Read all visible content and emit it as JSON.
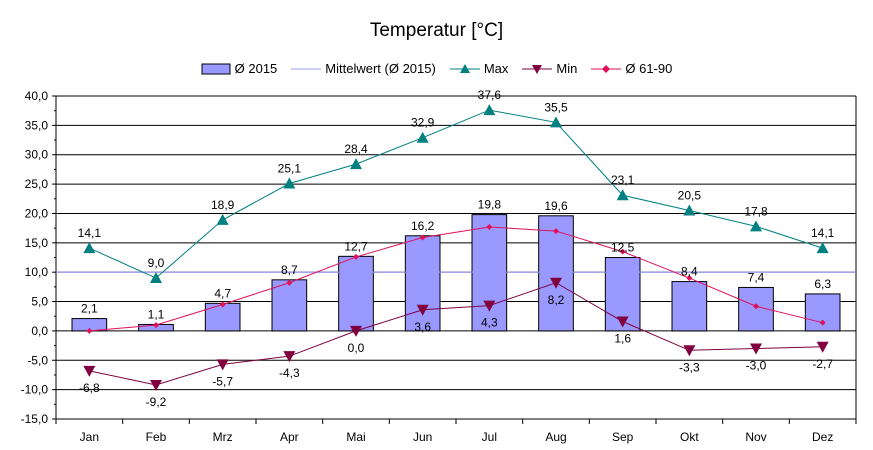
{
  "chart_data": {
    "type": "bar",
    "title": "Temperatur [°C]",
    "categories": [
      "Jan",
      "Feb",
      "Mrz",
      "Apr",
      "Mai",
      "Jun",
      "Jul",
      "Aug",
      "Sep",
      "Okt",
      "Nov",
      "Dez"
    ],
    "ylim": [
      -15,
      40
    ],
    "ytick_step": 5,
    "ytick_labels": [
      "-15,0",
      "-10,0",
      "-5,0",
      "0,0",
      "5,0",
      "10,0",
      "15,0",
      "20,0",
      "25,0",
      "30,0",
      "35,0",
      "40,0"
    ],
    "grid": true,
    "legend_position": "top",
    "series": [
      {
        "name": "Ø 2015",
        "kind": "bar",
        "color": "#9999ff",
        "values": [
          2.1,
          1.1,
          4.7,
          8.7,
          12.7,
          16.2,
          19.8,
          19.6,
          12.5,
          8.4,
          7.4,
          6.3
        ],
        "labels": [
          "2,1",
          "1,1",
          "4,7",
          "8,7",
          "12,7",
          "16,2",
          "19,8",
          "19,6",
          "12,5",
          "8,4",
          "7,4",
          "6,3"
        ]
      },
      {
        "name": "Mittelwert (Ø 2015)",
        "kind": "hline",
        "color": "#9999ff",
        "value": 10.0
      },
      {
        "name": "Max",
        "kind": "line",
        "marker": "triangle-up",
        "color": "#008080",
        "values": [
          14.1,
          9.0,
          18.9,
          25.1,
          28.4,
          32.9,
          37.6,
          35.5,
          23.1,
          20.5,
          17.8,
          14.1
        ],
        "labels": [
          "14,1",
          "9,0",
          "18,9",
          "25,1",
          "28,4",
          "32,9",
          "37,6",
          "35,5",
          "23,1",
          "20,5",
          "17,8",
          "14,1"
        ]
      },
      {
        "name": "Min",
        "kind": "line",
        "marker": "triangle-down",
        "color": "#800040",
        "values": [
          -6.8,
          -9.2,
          -5.7,
          -4.3,
          0.0,
          3.6,
          4.3,
          8.2,
          1.6,
          -3.3,
          -3.0,
          -2.7
        ],
        "labels": [
          "-6,8",
          "-9,2",
          "-5,7",
          "-4,3",
          "0,0",
          "3,6",
          "4,3",
          "8,2",
          "1,6",
          "-3,3",
          "-3,0",
          "-2,7"
        ]
      },
      {
        "name": "Ø 61-90",
        "kind": "line",
        "marker": "diamond",
        "color": "#e0105a",
        "values": [
          0.0,
          1.0,
          4.5,
          8.2,
          12.6,
          15.9,
          17.7,
          17.0,
          13.5,
          9.0,
          4.2,
          1.4
        ],
        "labels": []
      }
    ]
  }
}
